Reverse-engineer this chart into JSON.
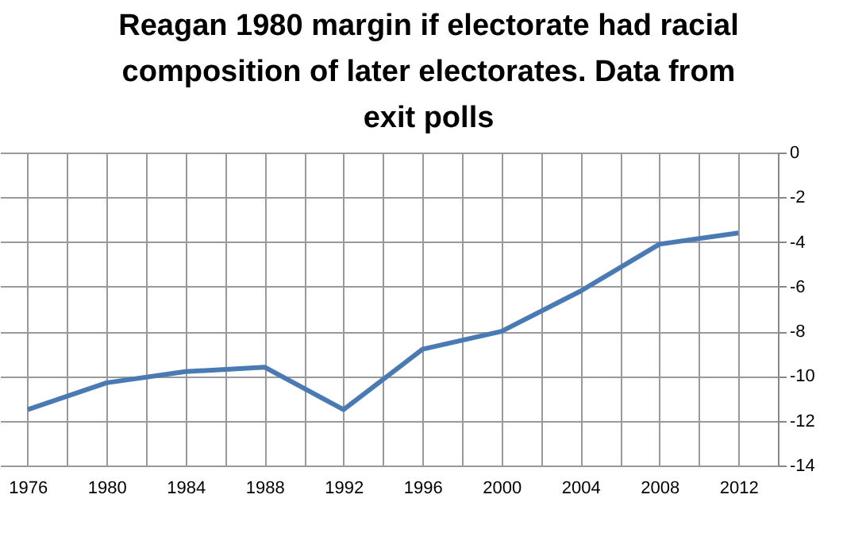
{
  "chart_data": {
    "type": "line",
    "title": "Reagan 1980 margin if electorate had racial composition of later electorates. Data from exit polls",
    "x": [
      1976,
      1980,
      1984,
      1988,
      1992,
      1996,
      2000,
      2004,
      2008,
      2012
    ],
    "series": [
      {
        "color": "#4a7ab4",
        "values": [
          -11.5,
          -10.3,
          -9.8,
          -9.6,
          -11.5,
          -8.8,
          -8,
          -6.2,
          -4.1,
          -3.6
        ]
      }
    ],
    "xlim": [
      1974.6,
      2014
    ],
    "xticks": [
      1976,
      {
        "value": 1978,
        "label": null
      },
      1980,
      {
        "value": 1982,
        "label": null
      },
      1984,
      {
        "value": 1986,
        "label": null
      },
      1988,
      {
        "value": 1990,
        "label": null
      },
      1992,
      {
        "value": 1994,
        "label": null
      },
      1996,
      {
        "value": 1998,
        "label": null
      },
      2000,
      {
        "value": 2002,
        "label": null
      },
      2004,
      {
        "value": 2006,
        "label": null
      },
      2008,
      {
        "value": 2010,
        "label": null
      },
      2012,
      {
        "value": 2014,
        "label": null
      }
    ],
    "ylim": [
      -14,
      0
    ],
    "yticks": [
      -14,
      -12,
      -10,
      -8,
      -6,
      -4,
      -2,
      0
    ],
    "grid": true,
    "marker": "none",
    "line_style": "solid"
  }
}
